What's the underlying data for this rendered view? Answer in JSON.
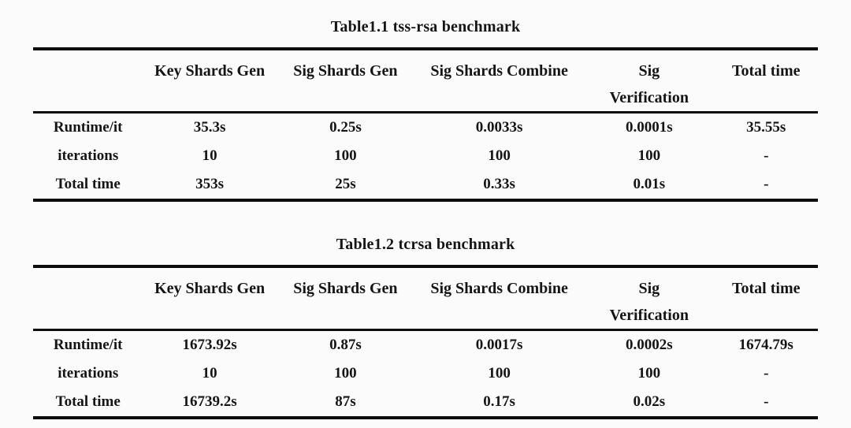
{
  "page": {
    "background_color": "#fbfbfb",
    "text_color": "#151515",
    "rule_color": "#0d0d0d"
  },
  "tables": [
    {
      "title": "Table1.1 tss-rsa benchmark",
      "columns": [
        "",
        "Key Shards Gen",
        "Sig Shards Gen",
        "Sig Shards Combine",
        "Sig Verification",
        "Total time"
      ],
      "rows": [
        {
          "label": "Runtime/it",
          "values": [
            "35.3s",
            "0.25s",
            "0.0033s",
            "0.0001s",
            "35.55s"
          ]
        },
        {
          "label": "iterations",
          "values": [
            "10",
            "100",
            "100",
            "100",
            "-"
          ]
        },
        {
          "label": "Total time",
          "values": [
            "353s",
            "25s",
            "0.33s",
            "0.01s",
            "-"
          ]
        }
      ]
    },
    {
      "title": "Table1.2 tcrsa benchmark",
      "columns": [
        "",
        "Key Shards Gen",
        "Sig Shards Gen",
        "Sig Shards Combine",
        "Sig Verification",
        "Total time"
      ],
      "rows": [
        {
          "label": "Runtime/it",
          "values": [
            "1673.92s",
            "0.87s",
            "0.0017s",
            "0.0002s",
            "1674.79s"
          ]
        },
        {
          "label": "iterations",
          "values": [
            "10",
            "100",
            "100",
            "100",
            "-"
          ]
        },
        {
          "label": "Total time",
          "values": [
            "16739.2s",
            "87s",
            "0.17s",
            "0.02s",
            "-"
          ]
        }
      ]
    }
  ]
}
